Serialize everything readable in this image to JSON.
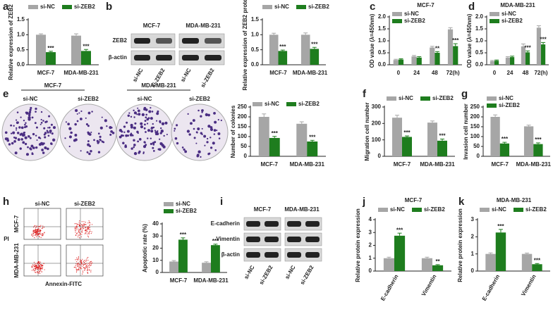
{
  "chart_data": [
    {
      "type": "bar",
      "y_label": "Relative expression of ZEB2",
      "categories": [
        "MCF-7",
        "MDA-MB-231"
      ],
      "ylim": [
        0,
        1.5
      ],
      "yticks": [
        {
          "value": 0,
          "label": "0.0"
        },
        0.5,
        {
          "value": 1,
          "label": "1.0"
        },
        1.5
      ],
      "series": [
        {
          "name": "si-NC",
          "color": "#a6a6a6",
          "values": [
            1.0,
            0.97
          ],
          "errors": [
            0.03,
            0.06
          ],
          "labels": [
            null,
            null
          ]
        },
        {
          "name": "si-ZEB2",
          "color": "#1e7d1e",
          "values": [
            0.42,
            0.46
          ],
          "errors": [
            0.03,
            0.05
          ],
          "labels": [
            "***",
            "***"
          ]
        }
      ]
    },
    {
      "type": "bar",
      "y_label": "Relative expression of ZEB2 protein",
      "categories": [
        "MCF-7",
        "MDA-MB-231"
      ],
      "ylim": [
        0,
        1.5
      ],
      "yticks": [
        {
          "value": 0,
          "label": "0.0"
        },
        0.5,
        {
          "value": 1,
          "label": "1.0"
        },
        1.5
      ],
      "series": [
        {
          "name": "si-NC",
          "color": "#a6a6a6",
          "values": [
            1.0,
            1.0
          ],
          "errors": [
            0.05,
            0.06
          ],
          "labels": [
            null,
            null
          ]
        },
        {
          "name": "si-ZEB2",
          "color": "#1e7d1e",
          "values": [
            0.46,
            0.53
          ],
          "errors": [
            0.03,
            0.05
          ],
          "labels": [
            "***",
            "***"
          ]
        }
      ]
    },
    {
      "type": "bar",
      "title": "MCF-7",
      "y_label": "OD value (λ=450nm)",
      "categories": [
        "0",
        "24",
        "48",
        "72(h)"
      ],
      "ylim": [
        0,
        2.0
      ],
      "yticks": [
        {
          "value": 0,
          "label": "0.0"
        },
        0.5,
        {
          "value": 1,
          "label": "1.0"
        },
        1.5,
        {
          "value": 2,
          "label": "2.0"
        }
      ],
      "series": [
        {
          "name": "si-NC",
          "color": "#a6a6a6",
          "values": [
            0.2,
            0.35,
            0.72,
            1.48
          ],
          "errors": [
            0.03,
            0.04,
            0.05,
            0.07
          ],
          "labels": [
            null,
            null,
            null,
            null
          ]
        },
        {
          "name": "si-ZEB2",
          "color": "#1e7d1e",
          "values": [
            0.22,
            0.3,
            0.5,
            0.78
          ],
          "errors": [
            0.03,
            0.04,
            0.05,
            0.1
          ],
          "labels": [
            null,
            null,
            "**",
            "***"
          ]
        }
      ]
    },
    {
      "type": "bar",
      "title": "MDA-MB-231",
      "y_label": "OD value (λ=450nm)",
      "categories": [
        "0",
        "24",
        "48",
        "72(h)"
      ],
      "ylim": [
        0,
        2.0
      ],
      "yticks": [
        {
          "value": 0,
          "label": "0.0"
        },
        0.5,
        {
          "value": 1,
          "label": "1.0"
        },
        1.5,
        {
          "value": 2,
          "label": "2.0"
        }
      ],
      "series": [
        {
          "name": "si-NC",
          "color": "#a6a6a6",
          "values": [
            0.15,
            0.3,
            0.77,
            1.55
          ],
          "errors": [
            0.03,
            0.04,
            0.1,
            0.08
          ],
          "labels": [
            null,
            null,
            null,
            null
          ]
        },
        {
          "name": "si-ZEB2",
          "color": "#1e7d1e",
          "values": [
            0.17,
            0.32,
            0.52,
            0.85
          ],
          "errors": [
            0.03,
            0.04,
            0.06,
            0.08
          ],
          "labels": [
            null,
            null,
            "***",
            "***"
          ]
        }
      ]
    },
    {
      "type": "bar",
      "y_label": "Number of colonies",
      "categories": [
        "MCF-7",
        "MDA-MB-231"
      ],
      "ylim": [
        0,
        250
      ],
      "yticks": [
        0,
        50,
        100,
        150,
        200,
        250
      ],
      "series": [
        {
          "name": "si-NC",
          "color": "#a6a6a6",
          "values": [
            200,
            165
          ],
          "errors": [
            15,
            10
          ],
          "labels": [
            null,
            null
          ]
        },
        {
          "name": "si-ZEB2",
          "color": "#1e7d1e",
          "values": [
            93,
            75
          ],
          "errors": [
            8,
            6
          ],
          "labels": [
            "***",
            "***"
          ]
        }
      ]
    },
    {
      "type": "bar",
      "y_label": "Migration cell number",
      "categories": [
        "MCF-7",
        "MDA-MB-231"
      ],
      "ylim": [
        0,
        300
      ],
      "yticks": [
        0,
        100,
        200,
        300
      ],
      "series": [
        {
          "name": "si-NC",
          "color": "#a6a6a6",
          "values": [
            235,
            205
          ],
          "errors": [
            15,
            10
          ],
          "labels": [
            null,
            null
          ]
        },
        {
          "name": "si-ZEB2",
          "color": "#1e7d1e",
          "values": [
            118,
            95
          ],
          "errors": [
            6,
            10
          ],
          "labels": [
            "***",
            "***"
          ]
        }
      ]
    },
    {
      "type": "bar",
      "y_label": "Invasion cell number",
      "categories": [
        "MCF-7",
        "MDA-MB-231"
      ],
      "ylim": [
        0,
        250
      ],
      "yticks": [
        0,
        50,
        100,
        150,
        200,
        250
      ],
      "series": [
        {
          "name": "si-NC",
          "color": "#a6a6a6",
          "values": [
            200,
            152
          ],
          "errors": [
            10,
            6
          ],
          "labels": [
            null,
            null
          ]
        },
        {
          "name": "si-ZEB2",
          "color": "#1e7d1e",
          "values": [
            65,
            62
          ],
          "errors": [
            6,
            6
          ],
          "labels": [
            "***",
            "***"
          ]
        }
      ]
    },
    {
      "type": "bar",
      "y_label": "Apoptotic rate (%)",
      "categories": [
        "MCF-7",
        "MDA-MB-231"
      ],
      "ylim": [
        0,
        40
      ],
      "yticks": [
        0,
        10,
        20,
        30,
        40
      ],
      "series": [
        {
          "name": "si-NC",
          "color": "#a6a6a6",
          "values": [
            9,
            8
          ],
          "errors": [
            0.8,
            0.8
          ],
          "labels": [
            null,
            null
          ]
        },
        {
          "name": "si-ZEB2",
          "color": "#1e7d1e",
          "values": [
            27,
            22.5
          ],
          "errors": [
            1.5,
            0.8
          ],
          "labels": [
            "***",
            "***"
          ]
        }
      ]
    },
    {
      "type": "bar",
      "title": "MCF-7",
      "y_label": "Relative protein expression",
      "categories": [
        "E-cadherin",
        "Vimentin"
      ],
      "ylim": [
        0,
        4
      ],
      "yticks": [
        0,
        1,
        2,
        3,
        4
      ],
      "series": [
        {
          "name": "si-NC",
          "color": "#a6a6a6",
          "values": [
            1.0,
            1.0
          ],
          "errors": [
            0.08,
            0.08
          ],
          "labels": [
            null,
            null
          ]
        },
        {
          "name": "si-ZEB2",
          "color": "#1e7d1e",
          "values": [
            2.75,
            0.45
          ],
          "errors": [
            0.2,
            0.05
          ],
          "labels": [
            "***",
            "**"
          ]
        }
      ]
    },
    {
      "type": "bar",
      "title": "MDA-MB-231",
      "y_label": "Relative protein expression",
      "categories": [
        "E-cadherin",
        "Vimentin"
      ],
      "ylim": [
        0,
        3
      ],
      "yticks": [
        0,
        1,
        2,
        3
      ],
      "series": [
        {
          "name": "si-NC",
          "color": "#a6a6a6",
          "values": [
            1.0,
            1.0
          ],
          "errors": [
            0.06,
            0.05
          ],
          "labels": [
            null,
            null
          ]
        },
        {
          "name": "si-ZEB2",
          "color": "#1e7d1e",
          "values": [
            2.25,
            0.4
          ],
          "errors": [
            0.18,
            0.04
          ],
          "labels": [
            "***",
            "***"
          ]
        }
      ]
    }
  ],
  "figure": {
    "letters": [
      "a",
      "b",
      "c",
      "d",
      "e",
      "f",
      "g",
      "h",
      "i",
      "j",
      "k"
    ],
    "blot_b": {
      "cell_lines": [
        "MCF-7",
        "MDA-MB-231"
      ],
      "proteins": [
        "ZEB2",
        "β-actin"
      ],
      "lanes": [
        "si-NC",
        "si-ZEB2",
        "si-NC",
        "si-ZEB2"
      ]
    },
    "colony_e": {
      "cell_lines": [
        "MCF-7",
        "MDA-MB-231"
      ],
      "groups": [
        "si-NC",
        "si-ZEB2",
        "si-NC",
        "si-ZEB2"
      ]
    },
    "flow_h": {
      "groups": [
        "si-NC",
        "si-ZEB2"
      ],
      "cell_lines": [
        "MCF-7",
        "MDA-MB-231"
      ],
      "y_label": "PI",
      "x_label": "Annexin-FITC"
    },
    "blot_i": {
      "cell_lines": [
        "MCF-7",
        "MDA-MB-231"
      ],
      "proteins": [
        "E-cadherin",
        "Vimentin",
        "β-actin"
      ],
      "lanes": [
        "si-NC",
        "si-ZEB2",
        "si-NC",
        "si-ZEB2"
      ]
    }
  }
}
